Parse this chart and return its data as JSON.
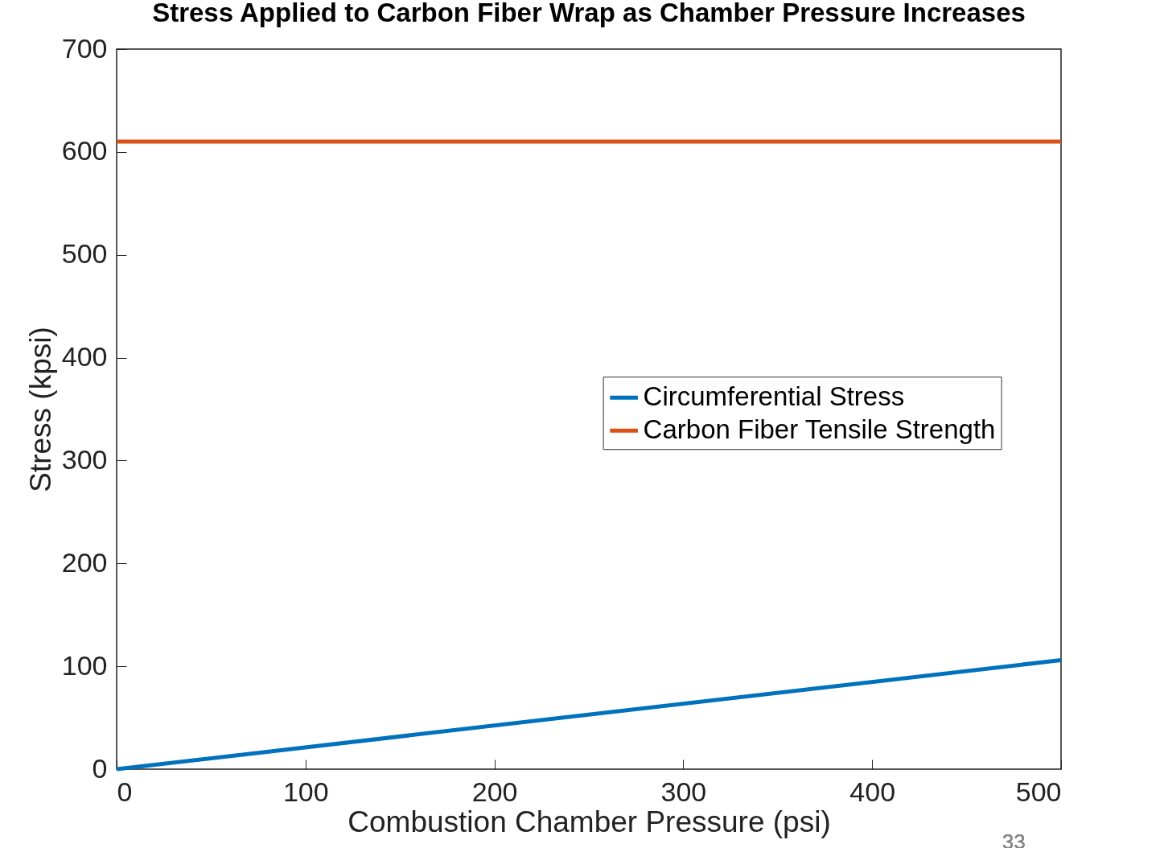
{
  "chart_data": {
    "type": "line",
    "title": "Stress Applied to Carbon Fiber Wrap as Chamber Pressure Increases",
    "xlabel": "Combustion Chamber Pressure (psi)",
    "ylabel": "Stress (kpsi)",
    "x": [
      0,
      500
    ],
    "series": [
      {
        "name": "Circumferential Stress",
        "color": "#0072bd",
        "values": [
          0,
          106
        ]
      },
      {
        "name": "Carbon Fiber Tensile Strength",
        "color": "#d95319",
        "values": [
          610,
          610
        ]
      }
    ],
    "xlim": [
      0,
      500
    ],
    "xticks": [
      0,
      100,
      200,
      300,
      400,
      500
    ],
    "ylim": [
      0,
      700
    ],
    "yticks": [
      0,
      100,
      200,
      300,
      400,
      500,
      600,
      700
    ],
    "grid": false,
    "legend": "right",
    "marker": "none",
    "line_style": "solid",
    "annotations": [
      "33"
    ]
  }
}
